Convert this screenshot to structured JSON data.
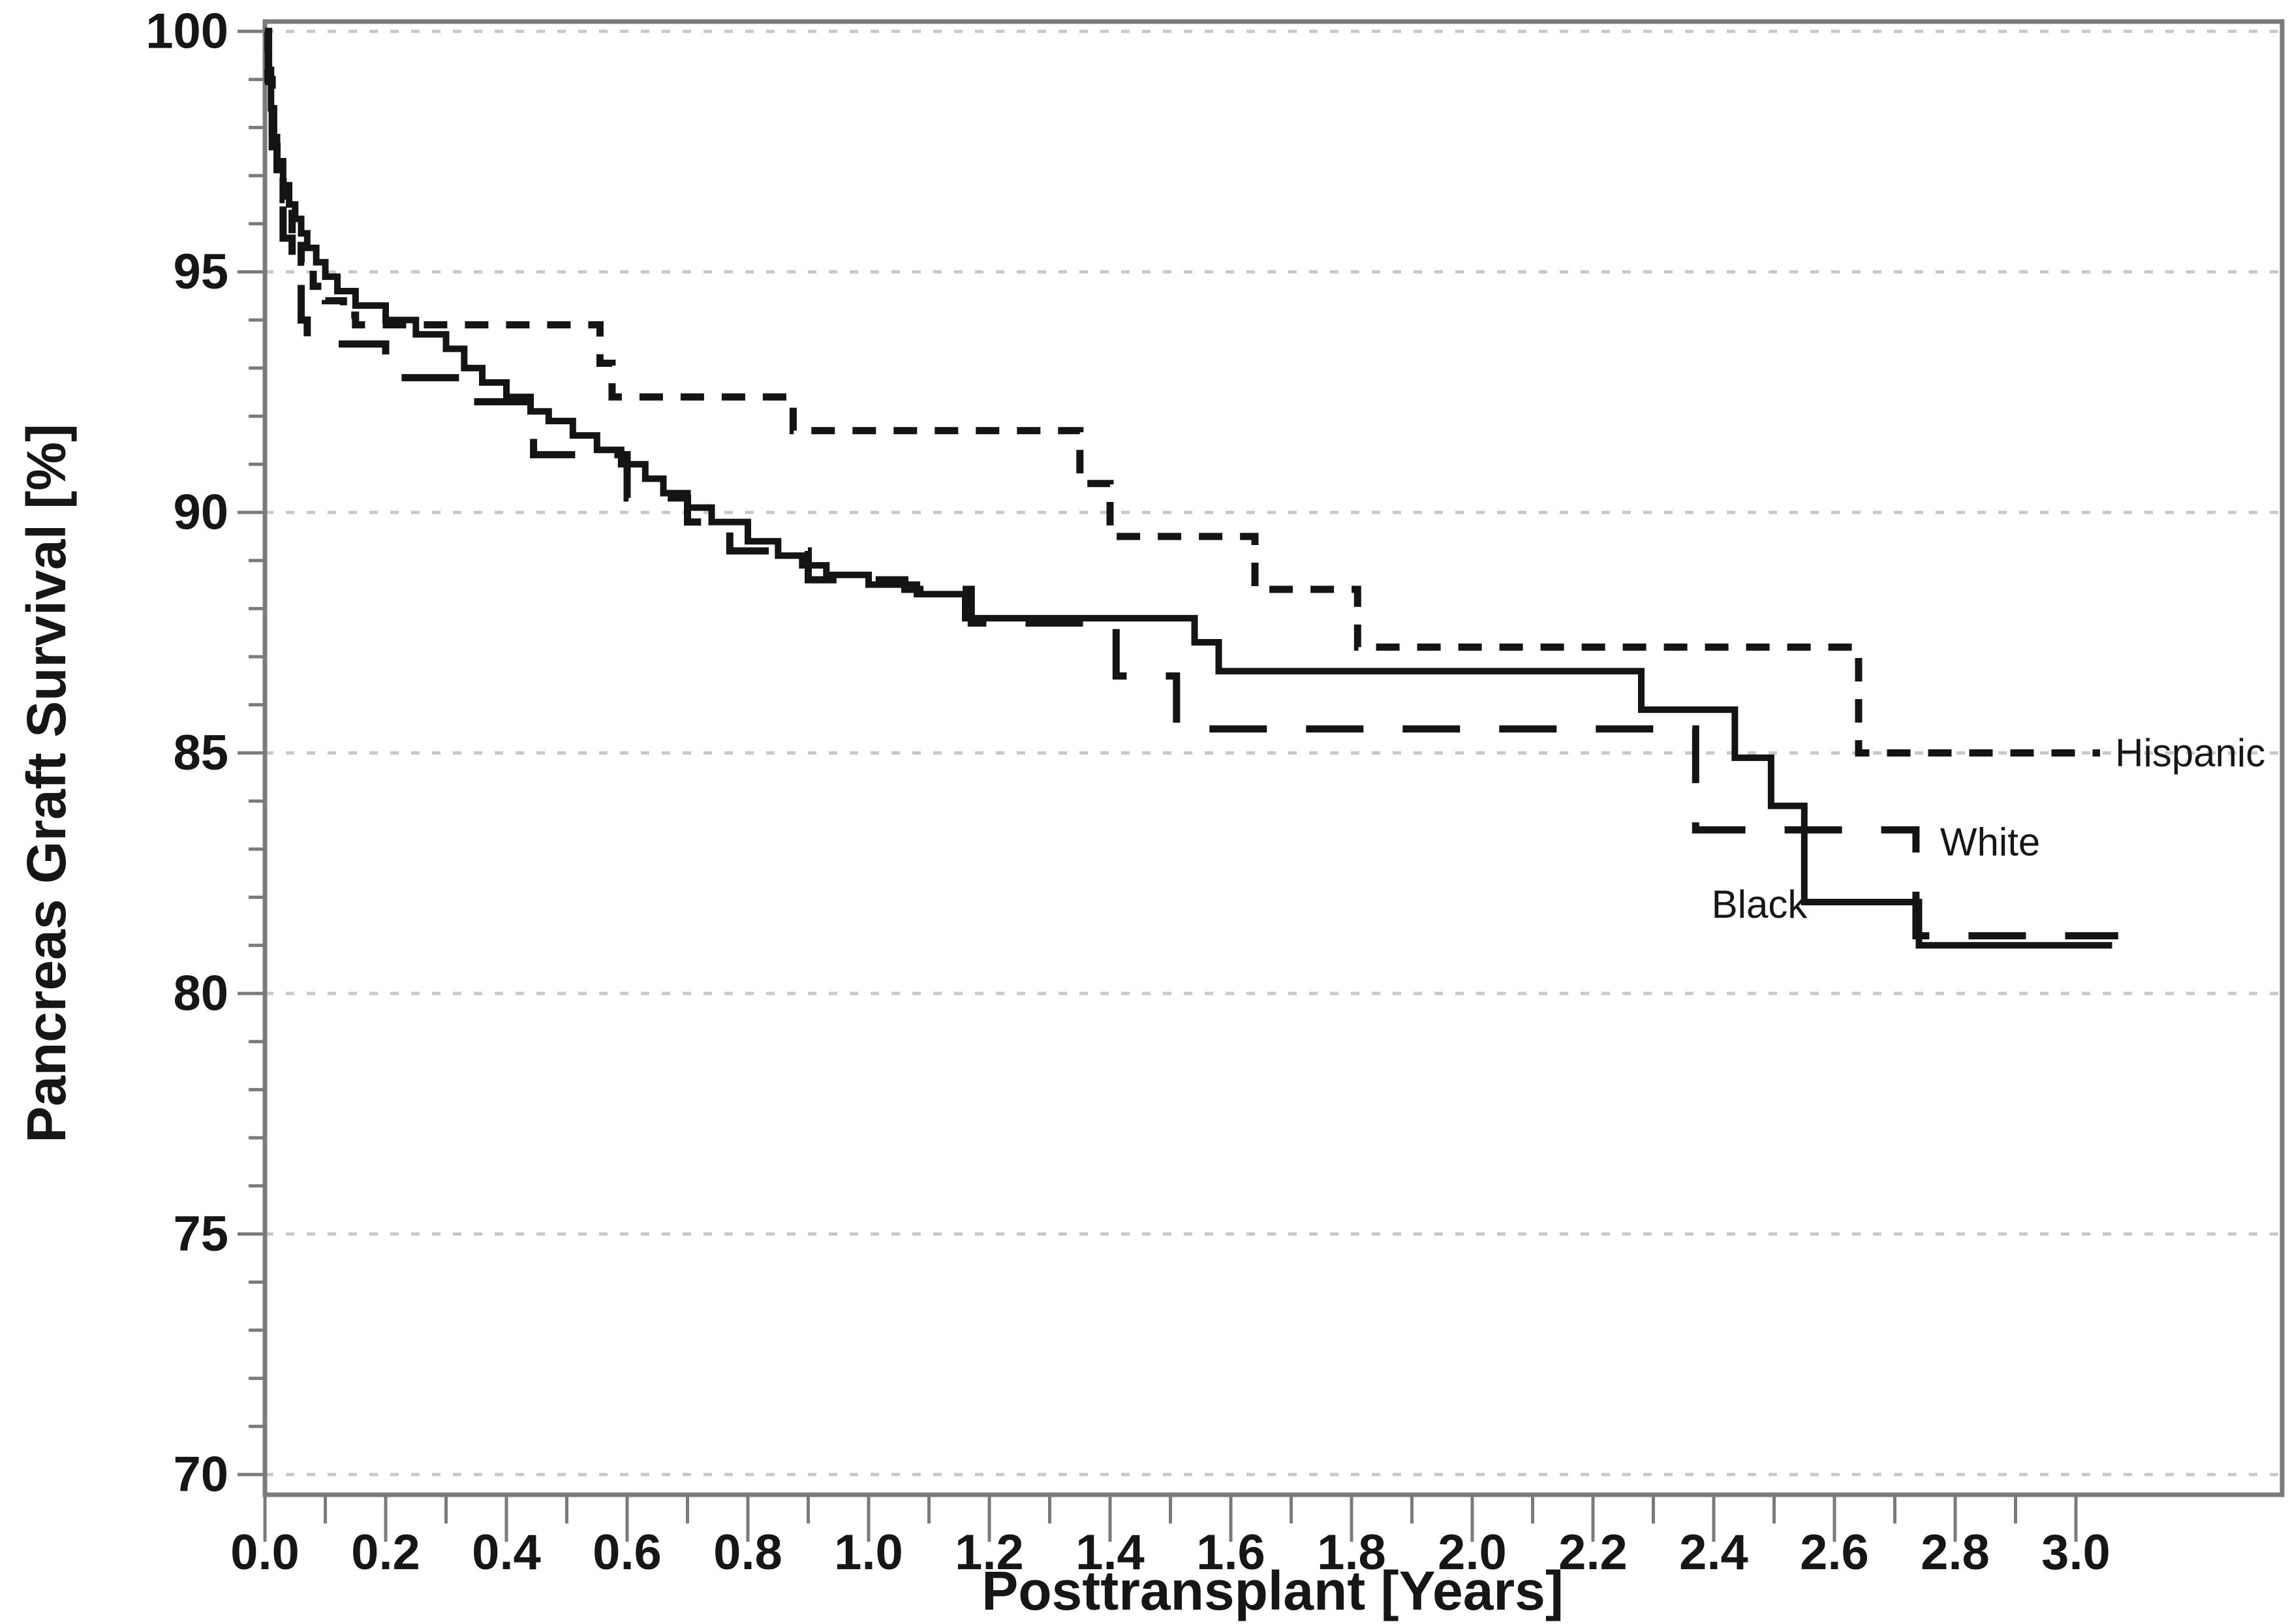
{
  "chart_data": {
    "type": "line",
    "subtype": "kaplan-meier-step-survival",
    "title": "",
    "xlabel": "Posttransplant [Years]",
    "ylabel": "Pancreas Graft Survival [%]",
    "xlim": [
      0,
      3.34
    ],
    "ylim": [
      69.6,
      100.4
    ],
    "grid": "horizontal-dashed-at-major-ticks",
    "legend_position": "inline-labels-at-curve-ends",
    "x_axis": {
      "major_ticks": [
        0.0,
        0.2,
        0.4,
        0.6,
        0.8,
        1.0,
        1.2,
        1.4,
        1.6,
        1.8,
        2.0,
        2.2,
        2.4,
        2.6,
        2.8,
        3.0
      ],
      "major_tick_labels": [
        "0.0",
        "0.2",
        "0.4",
        "0.6",
        "0.8",
        "1.0",
        "1.2",
        "1.4",
        "1.6",
        "1.8",
        "2.0",
        "2.2",
        "2.4",
        "2.6",
        "2.8",
        "3.0"
      ],
      "minor_ticks": [
        0.1,
        0.3,
        0.5,
        0.7,
        0.9,
        1.1,
        1.3,
        1.5,
        1.7,
        1.9,
        2.1,
        2.3,
        2.5,
        2.7,
        2.9
      ]
    },
    "y_axis": {
      "major_ticks": [
        100,
        95,
        90,
        85,
        80,
        75,
        70
      ],
      "major_tick_labels": [
        "100",
        "95",
        "90",
        "85",
        "80",
        "75",
        "70"
      ],
      "minor_ticks": [
        99,
        98,
        97,
        96,
        94,
        93,
        92,
        91,
        89,
        88,
        87,
        86,
        84,
        83,
        82,
        81,
        79,
        78,
        77,
        76,
        74,
        73,
        72,
        71
      ],
      "gridline_values": [
        100,
        95,
        90,
        85,
        80,
        75,
        70
      ]
    },
    "series": [
      {
        "name": "Black",
        "line_style": "solid",
        "color": "#141414",
        "label": {
          "text": "Black",
          "x": 2.555,
          "y": 81.85,
          "anchor": "end"
        },
        "points": [
          [
            0,
            100
          ],
          [
            0.005,
            99.2
          ],
          [
            0.01,
            98.4
          ],
          [
            0.015,
            97.8
          ],
          [
            0.02,
            97.3
          ],
          [
            0.03,
            96.8
          ],
          [
            0.04,
            96.4
          ],
          [
            0.05,
            96.1
          ],
          [
            0.06,
            95.8
          ],
          [
            0.07,
            95.5
          ],
          [
            0.085,
            95.2
          ],
          [
            0.1,
            94.9
          ],
          [
            0.12,
            94.6
          ],
          [
            0.15,
            94.3
          ],
          [
            0.2,
            94.0
          ],
          [
            0.25,
            93.7
          ],
          [
            0.3,
            93.4
          ],
          [
            0.33,
            93.0
          ],
          [
            0.36,
            92.7
          ],
          [
            0.4,
            92.4
          ],
          [
            0.44,
            92.1
          ],
          [
            0.47,
            91.9
          ],
          [
            0.51,
            91.6
          ],
          [
            0.55,
            91.3
          ],
          [
            0.59,
            91.0
          ],
          [
            0.63,
            90.7
          ],
          [
            0.66,
            90.4
          ],
          [
            0.7,
            90.1
          ],
          [
            0.74,
            89.8
          ],
          [
            0.8,
            89.4
          ],
          [
            0.85,
            89.1
          ],
          [
            0.89,
            88.9
          ],
          [
            0.93,
            88.7
          ],
          [
            1.0,
            88.5
          ],
          [
            1.08,
            88.3
          ],
          [
            1.16,
            87.8
          ],
          [
            1.54,
            87.3
          ],
          [
            1.58,
            86.7
          ],
          [
            2.28,
            85.9
          ],
          [
            2.435,
            84.9
          ],
          [
            2.495,
            83.9
          ],
          [
            2.55,
            81.9
          ],
          [
            2.74,
            81.0
          ],
          [
            3.06,
            81.0
          ]
        ]
      },
      {
        "name": "White",
        "line_style": "long-dash",
        "color": "#141414",
        "label": {
          "text": "White",
          "x": 2.775,
          "y": 83.15,
          "anchor": "start"
        },
        "points": [
          [
            0,
            100
          ],
          [
            0.006,
            98.6
          ],
          [
            0.012,
            97.6
          ],
          [
            0.02,
            96.6
          ],
          [
            0.03,
            95.7
          ],
          [
            0.045,
            94.8
          ],
          [
            0.06,
            94.0
          ],
          [
            0.07,
            93.5
          ],
          [
            0.2,
            92.8
          ],
          [
            0.33,
            92.3
          ],
          [
            0.445,
            91.2
          ],
          [
            0.6,
            90.3
          ],
          [
            0.7,
            89.8
          ],
          [
            0.77,
            89.2
          ],
          [
            0.9,
            88.6
          ],
          [
            1.06,
            88.4
          ],
          [
            1.17,
            87.7
          ],
          [
            1.41,
            86.6
          ],
          [
            1.51,
            85.5
          ],
          [
            2.37,
            83.4
          ],
          [
            2.735,
            81.2
          ],
          [
            3.07,
            81.2
          ]
        ]
      },
      {
        "name": "Hispanic",
        "line_style": "short-dash",
        "color": "#141414",
        "label": {
          "text": "Hispanic",
          "x": 3.065,
          "y": 85.0,
          "anchor": "start"
        },
        "points": [
          [
            0,
            100
          ],
          [
            0.005,
            99.0
          ],
          [
            0.012,
            98.0
          ],
          [
            0.02,
            97.2
          ],
          [
            0.03,
            96.5
          ],
          [
            0.045,
            95.8
          ],
          [
            0.06,
            95.2
          ],
          [
            0.08,
            94.7
          ],
          [
            0.1,
            94.4
          ],
          [
            0.13,
            94.1
          ],
          [
            0.15,
            93.9
          ],
          [
            0.555,
            93.1
          ],
          [
            0.575,
            92.4
          ],
          [
            0.875,
            91.7
          ],
          [
            1.35,
            90.6
          ],
          [
            1.4,
            89.5
          ],
          [
            1.64,
            88.4
          ],
          [
            1.81,
            87.2
          ],
          [
            2.64,
            85.0
          ],
          [
            3.04,
            85.0
          ]
        ]
      }
    ],
    "colors": {
      "curve": "#141414",
      "frame": "#7b7b7b",
      "tick": "#7b7b7b",
      "gridline": "#c9c9c9",
      "text": "#161616",
      "background": "#ffffff"
    }
  }
}
